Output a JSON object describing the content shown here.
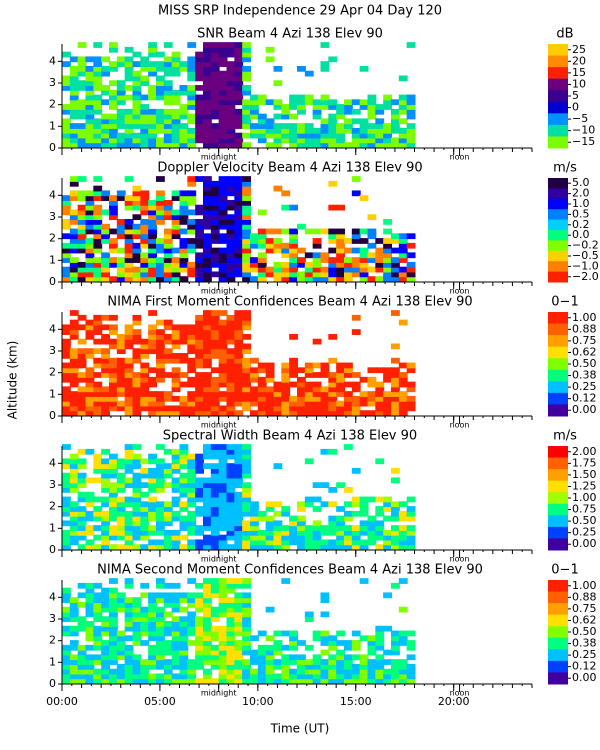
{
  "title": "MISS SRP Independence  29 Apr 04 Day 120",
  "y_label": "Altitude (km)",
  "x_label": "Time (UT)",
  "chart_data": [
    {
      "type": "heatmap",
      "title": "SNR Beam 4 Azi 138 Elev 90",
      "xlim": [
        0,
        24
      ],
      "xticks": [
        {
          "value": 0,
          "label": "00:00"
        },
        {
          "value": 5,
          "label": "05:00"
        },
        {
          "value": 10,
          "label": "10:00"
        },
        {
          "value": 15,
          "label": "15:00"
        },
        {
          "value": 20,
          "label": "20:00"
        }
      ],
      "ylim": [
        0,
        4.8
      ],
      "yticks": [
        0,
        1,
        2,
        3,
        4
      ],
      "annotations": [
        {
          "text": "midnight",
          "x": 8.0
        },
        {
          "text": "noon",
          "x": 20.3
        }
      ],
      "colorbar": {
        "label": "dB",
        "ticks": [
          25,
          20,
          15,
          10,
          5,
          0,
          {
            "value": -5,
            "label": "−5"
          },
          {
            "value": -10,
            "label": "−10"
          },
          {
            "value": -15,
            "label": "−15"
          }
        ],
        "colors": [
          "#ffcc00",
          "#ff8c00",
          "#ff2000",
          "#6a0080",
          "#3a0090",
          "#0000d0",
          "#0090ff",
          "#00e0a0",
          "#7cfc00"
        ]
      }
    },
    {
      "type": "heatmap",
      "title": "Doppler Velocity Beam 4 Azi 138 Elev 90",
      "xlim": [
        0,
        24
      ],
      "xticks": [
        {
          "value": 0,
          "label": "00:00"
        },
        {
          "value": 5,
          "label": "05:00"
        },
        {
          "value": 10,
          "label": "10:00"
        },
        {
          "value": 15,
          "label": "15:00"
        },
        {
          "value": 20,
          "label": "20:00"
        }
      ],
      "ylim": [
        0,
        4.8
      ],
      "yticks": [
        0,
        1,
        2,
        3,
        4
      ],
      "annotations": [
        {
          "text": "midnight",
          "x": 8.0
        },
        {
          "text": "noon",
          "x": 20.3
        }
      ],
      "colorbar": {
        "label": "m/s",
        "ticks": [
          {
            "value": 5,
            "label": "5.0"
          },
          {
            "value": 2,
            "label": "2.0"
          },
          {
            "value": 1,
            "label": "1.0"
          },
          0.5,
          0.2,
          {
            "value": 0,
            "label": "0.0"
          },
          {
            "value": -0.2,
            "label": "−0.2"
          },
          {
            "value": -0.5,
            "label": "−0.5"
          },
          {
            "value": -1,
            "label": "−1.0"
          },
          {
            "value": -2,
            "label": "−2.0"
          }
        ],
        "colors": [
          "#200040",
          "#3000a0",
          "#0000ff",
          "#0080ff",
          "#00d0ff",
          "#00ff80",
          "#80ff00",
          "#ffd000",
          "#ff8000",
          "#ff2000"
        ]
      }
    },
    {
      "type": "heatmap",
      "title": "NIMA First Moment Confidences Beam 4 Azi 138 Elev 90",
      "xlim": [
        0,
        24
      ],
      "xticks": [
        {
          "value": 0,
          "label": "00:00"
        },
        {
          "value": 5,
          "label": "05:00"
        },
        {
          "value": 10,
          "label": "10:00"
        },
        {
          "value": 15,
          "label": "15:00"
        },
        {
          "value": 20,
          "label": "20:00"
        }
      ],
      "ylim": [
        0,
        4.8
      ],
      "yticks": [
        0,
        1,
        2,
        3,
        4
      ],
      "annotations": [
        {
          "text": "midnight",
          "x": 8.0
        },
        {
          "text": "noon",
          "x": 20.3
        }
      ],
      "colorbar": {
        "label": "0−1",
        "ticks": [
          {
            "value": 1,
            "label": "1.00"
          },
          0.88,
          0.75,
          0.62,
          {
            "value": 0.5,
            "label": "0.50"
          },
          0.38,
          0.25,
          0.12,
          {
            "value": 0,
            "label": "0.00"
          }
        ],
        "colors": [
          "#ff2000",
          "#ff6000",
          "#ffa000",
          "#ffe000",
          "#80ff00",
          "#00ff80",
          "#00c0ff",
          "#0040ff",
          "#4000a0"
        ]
      }
    },
    {
      "type": "heatmap",
      "title": "Spectral Width Beam 4 Azi 138 Elev 90",
      "xlim": [
        0,
        24
      ],
      "xticks": [
        {
          "value": 0,
          "label": "00:00"
        },
        {
          "value": 5,
          "label": "05:00"
        },
        {
          "value": 10,
          "label": "10:00"
        },
        {
          "value": 15,
          "label": "15:00"
        },
        {
          "value": 20,
          "label": "20:00"
        }
      ],
      "ylim": [
        0,
        4.8
      ],
      "yticks": [
        0,
        1,
        2,
        3,
        4
      ],
      "annotations": [
        {
          "text": "midnight",
          "x": 8.0
        },
        {
          "text": "noon",
          "x": 20.3
        }
      ],
      "colorbar": {
        "label": "m/s",
        "ticks": [
          {
            "value": 2,
            "label": "2.00"
          },
          1.75,
          {
            "value": 1.5,
            "label": "1.50"
          },
          1.25,
          {
            "value": 1,
            "label": "1.00"
          },
          0.75,
          {
            "value": 0.5,
            "label": "0.50"
          },
          0.25,
          {
            "value": 0,
            "label": "0.00"
          }
        ],
        "colors": [
          "#ff0000",
          "#ff6000",
          "#ffa000",
          "#ffe000",
          "#a0ff00",
          "#00ff80",
          "#00c0ff",
          "#0040ff",
          "#4000a0"
        ]
      }
    },
    {
      "type": "heatmap",
      "title": "NIMA Second Moment Confidences Beam 4 Azi 138 Elev 90",
      "xlim": [
        0,
        24
      ],
      "xticks": [
        {
          "value": 0,
          "label": "00:00"
        },
        {
          "value": 5,
          "label": "05:00"
        },
        {
          "value": 10,
          "label": "10:00"
        },
        {
          "value": 15,
          "label": "15:00"
        },
        {
          "value": 20,
          "label": "20:00"
        }
      ],
      "ylim": [
        0,
        4.8
      ],
      "yticks": [
        0,
        1,
        2,
        3,
        4
      ],
      "annotations": [
        {
          "text": "midnight",
          "x": 8.0
        },
        {
          "text": "noon",
          "x": 20.3
        }
      ],
      "colorbar": {
        "label": "0−1",
        "ticks": [
          {
            "value": 1,
            "label": "1.00"
          },
          0.88,
          0.75,
          0.62,
          {
            "value": 0.5,
            "label": "0.50"
          },
          0.38,
          0.25,
          0.12,
          {
            "value": 0,
            "label": "0.00"
          }
        ],
        "colors": [
          "#ff2000",
          "#ff6000",
          "#ffa000",
          "#ffe000",
          "#80ff00",
          "#00ff80",
          "#00c0ff",
          "#0040ff",
          "#4000a0"
        ]
      }
    }
  ]
}
